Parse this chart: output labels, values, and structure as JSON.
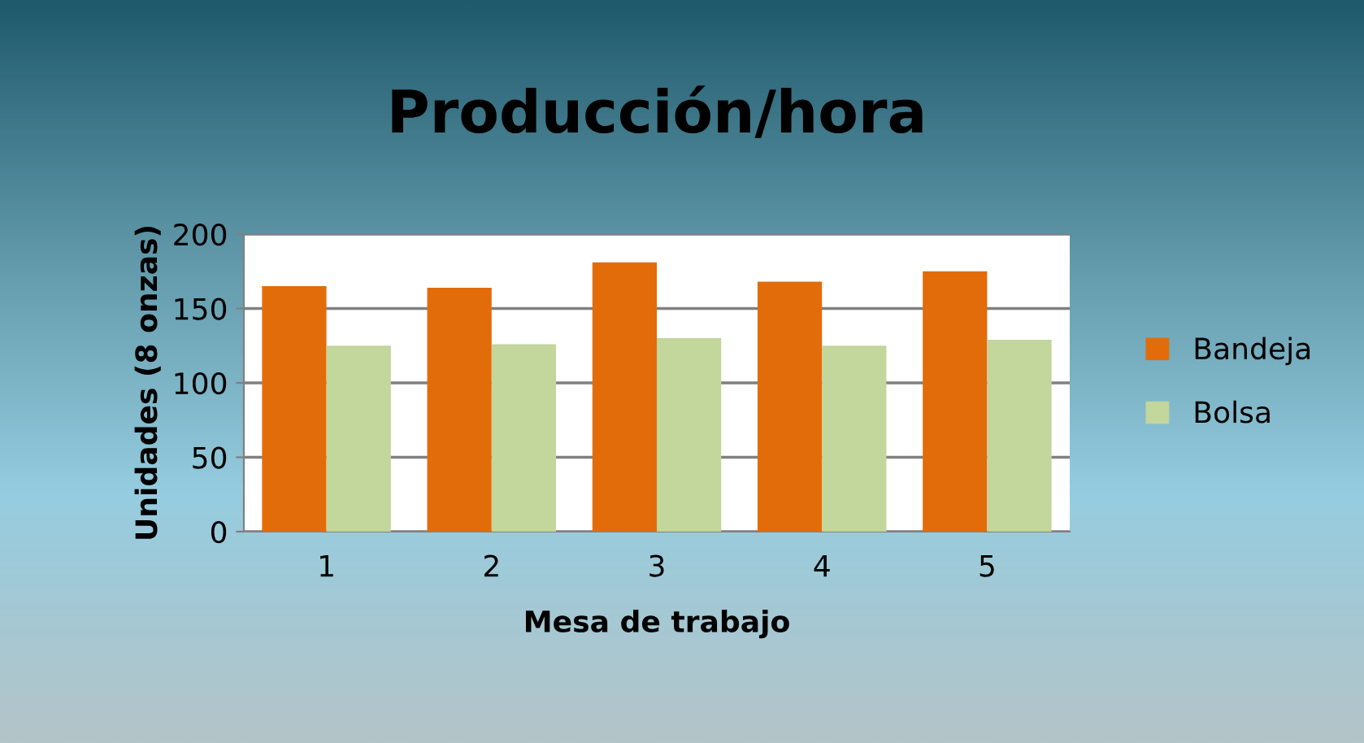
{
  "chart_data": {
    "type": "bar",
    "title": "Producción/hora",
    "xlabel": "Mesa de trabajo",
    "ylabel": "Unidades (8 onzas)",
    "categories": [
      "1",
      "2",
      "3",
      "4",
      "5"
    ],
    "series": [
      {
        "name": "Bandeja",
        "color": "#e36c0a",
        "values": [
          165,
          164,
          181,
          168,
          175
        ]
      },
      {
        "name": "Bolsa",
        "color": "#c3d69b",
        "values": [
          125,
          126,
          130,
          125,
          129
        ]
      }
    ],
    "ylim": [
      0,
      200
    ],
    "yticks": [
      0,
      50,
      100,
      150,
      200
    ],
    "grid": "y",
    "legend": "right"
  }
}
